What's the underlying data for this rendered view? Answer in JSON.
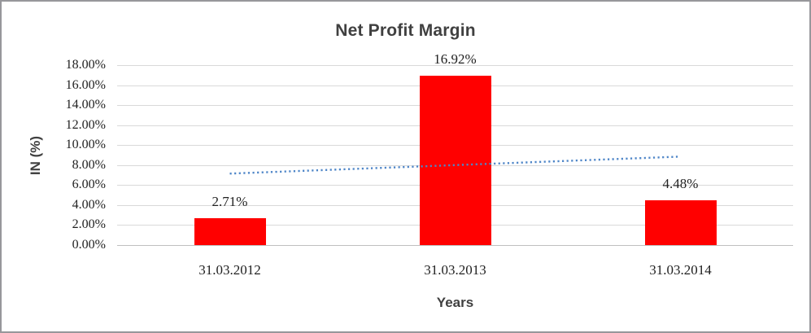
{
  "chart_data": {
    "type": "bar",
    "title": "Net Profit Margin",
    "xlabel": "Years",
    "ylabel": "IN (%)",
    "categories": [
      "31.03.2012",
      "31.03.2013",
      "31.03.2014"
    ],
    "values": [
      2.71,
      16.92,
      4.48
    ],
    "data_labels": [
      "2.71%",
      "16.92%",
      "4.48%"
    ],
    "y_ticks": [
      "18.00%",
      "16.00%",
      "14.00%",
      "12.00%",
      "10.00%",
      "8.00%",
      "6.00%",
      "4.00%",
      "2.00%",
      "0.00%"
    ],
    "ylim": [
      0,
      18
    ],
    "grid": "horizontal",
    "legend": "none",
    "bar_color": "#ff0000",
    "gridline_color": "#d9d9d9",
    "trendline": {
      "type": "linear",
      "style": "dotted",
      "color": "#4f86c8",
      "start_value": 7.15,
      "end_value": 8.85
    }
  }
}
